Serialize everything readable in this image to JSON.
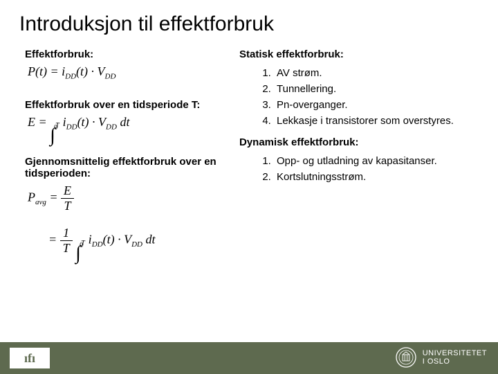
{
  "slide": {
    "title": "Introduksjon til effektforbruk",
    "title_fontsize": 30,
    "background_color": "#ffffff",
    "text_color": "#000000"
  },
  "left": {
    "h1": "Effektforbruk:",
    "f1_html": "P(t) = i<span class='sub'>DD</span>(t) · V<span class='sub'>DD</span>",
    "h2": "Effektforbruk over en tidsperiode T:",
    "f2_html": "E = <span class='intblock'><span class='sym'>∫</span><span class='ub'>T</span><span class='lb'>0</span></span> i<span class='sub'>DD</span>(t) · V<span class='sub'>DD</span> dt",
    "h3": "Gjennomsnittelig effektforbruk over en tidsperioden:",
    "f3a_html": "P<span class='sub'>avg</span> = <span class='frac'><span class='num'>E</span><span class='den'>T</span></span>",
    "f3b_html": "= <span class='frac'><span class='num'>1</span><span class='den'>T</span></span> <span class='intblock'><span class='sym'>∫</span><span class='ub'>T</span><span class='lb'>0</span></span> i<span class='sub'>DD</span>(t) · V<span class='sub'>DD</span> dt"
  },
  "right": {
    "h1": "Statisk effektforbruk:",
    "static_items": [
      "AV strøm.",
      "Tunnellering.",
      "Pn-overganger.",
      "Lekkasje i transistorer som overstyres."
    ],
    "h2": "Dynamisk effektforbruk:",
    "dynamic_items": [
      "Opp- og utladning av kapasitanser.",
      "Kortslutningsstrøm."
    ]
  },
  "footer": {
    "bg": "#5e6a4f",
    "ifi_text": "ıfı",
    "uio_line1": "UNIVERSITETET",
    "uio_line2": "I OSLO"
  },
  "style": {
    "subhead_fontsize": 15,
    "formula_fontfamily": "Times New Roman",
    "list_fontsize": 15
  }
}
